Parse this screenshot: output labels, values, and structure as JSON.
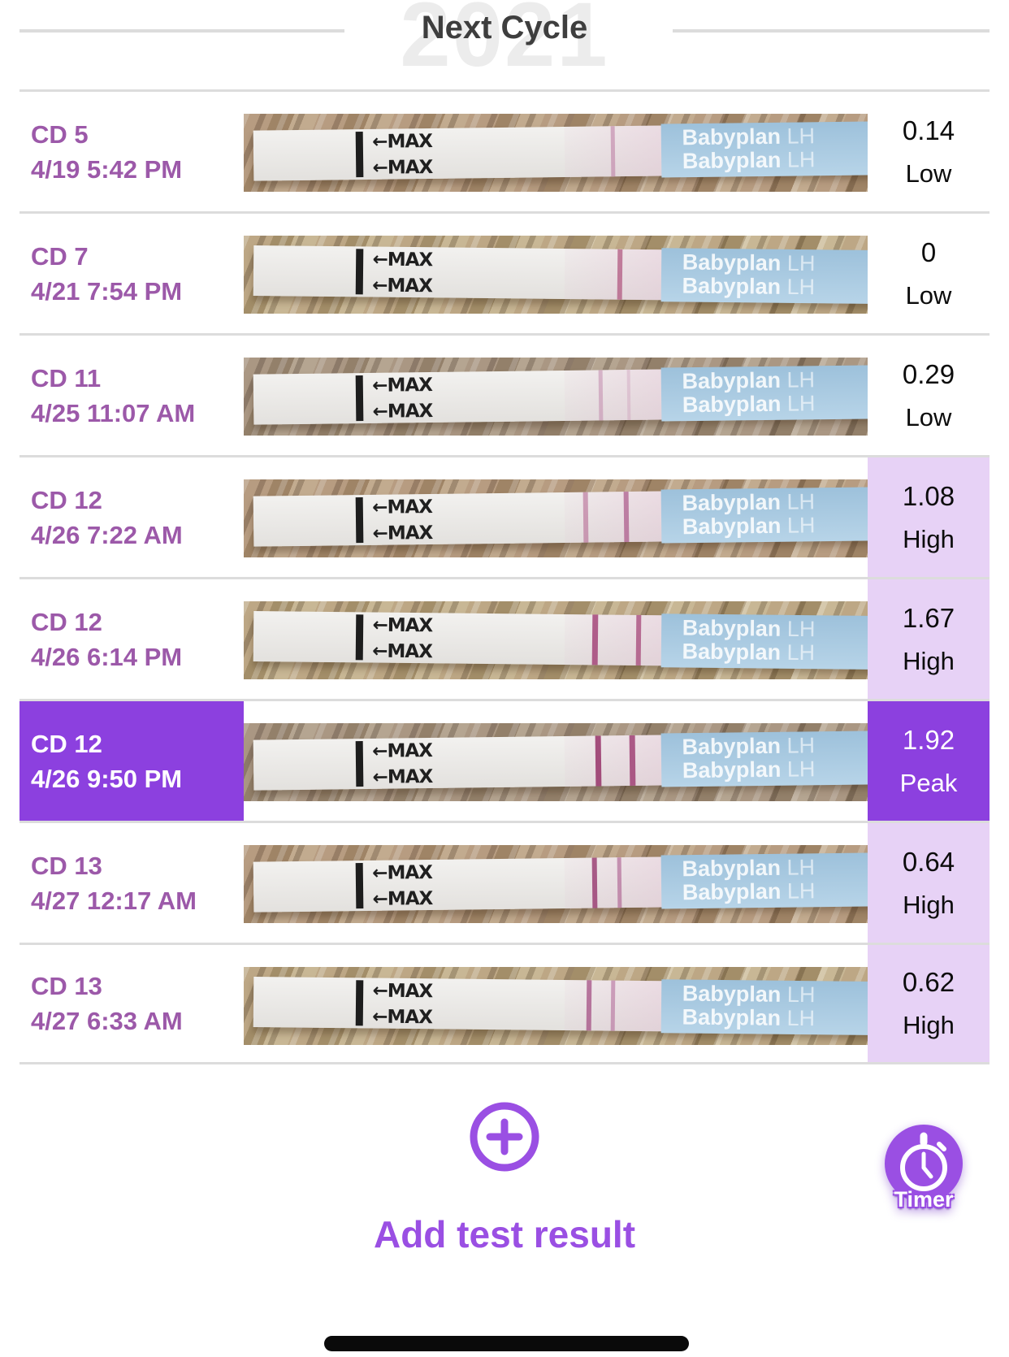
{
  "header": {
    "watermark": "2021",
    "title": "Next Cycle"
  },
  "colors": {
    "accent": "#9a4fe3",
    "peak_bg": "#8c40df",
    "high_bg": "#e7d2f6",
    "label_purple": "#9c59a9",
    "divider": "#dcdcdc"
  },
  "strip_print": {
    "max_label": "←MAX",
    "brand": "Babyplan",
    "brand_suffix": "LH"
  },
  "rows": [
    {
      "cd": "CD 5",
      "datetime": "4/19 5:42 PM",
      "value": "0.14",
      "status": "Low",
      "strip": {
        "lines": [
          {
            "pos": 0.575,
            "width": 5,
            "color": "rgba(186,120,160,0.55)"
          }
        ]
      }
    },
    {
      "cd": "CD 7",
      "datetime": "4/21 7:54 PM",
      "value": "0",
      "status": "Low",
      "strip": {
        "lines": [
          {
            "pos": 0.585,
            "width": 6,
            "color": "rgba(178,90,130,0.75)"
          }
        ]
      }
    },
    {
      "cd": "CD 11",
      "datetime": "4/25 11:07 AM",
      "value": "0.29",
      "status": "Low",
      "strip": {
        "lines": [
          {
            "pos": 0.555,
            "width": 5,
            "color": "rgba(190,130,168,0.50)"
          },
          {
            "pos": 0.6,
            "width": 4,
            "color": "rgba(200,150,180,0.35)"
          }
        ]
      }
    },
    {
      "cd": "CD 12",
      "datetime": "4/26 7:22 AM",
      "value": "1.08",
      "status": "High",
      "strip": {
        "lines": [
          {
            "pos": 0.53,
            "width": 6,
            "color": "rgba(176,95,140,0.55)"
          },
          {
            "pos": 0.595,
            "width": 6,
            "color": "rgba(170,85,135,0.70)"
          }
        ]
      }
    },
    {
      "cd": "CD 12",
      "datetime": "4/26 6:14 PM",
      "value": "1.67",
      "status": "High",
      "strip": {
        "lines": [
          {
            "pos": 0.545,
            "width": 7,
            "color": "rgba(160,60,115,0.80)"
          },
          {
            "pos": 0.615,
            "width": 6,
            "color": "rgba(165,70,120,0.75)"
          }
        ]
      }
    },
    {
      "cd": "CD 12",
      "datetime": "4/26 9:50 PM",
      "value": "1.92",
      "status": "Peak",
      "strip": {
        "lines": [
          {
            "pos": 0.55,
            "width": 7,
            "color": "rgba(150,50,105,0.85)"
          },
          {
            "pos": 0.605,
            "width": 7,
            "color": "rgba(155,55,110,0.80)"
          }
        ]
      }
    },
    {
      "cd": "CD 13",
      "datetime": "4/27 12:17 AM",
      "value": "0.64",
      "status": "High",
      "strip": {
        "lines": [
          {
            "pos": 0.545,
            "width": 6,
            "color": "rgba(150,55,110,0.80)"
          },
          {
            "pos": 0.585,
            "width": 5,
            "color": "rgba(170,90,140,0.60)"
          }
        ]
      }
    },
    {
      "cd": "CD 13",
      "datetime": "4/27 6:33 AM",
      "value": "0.62",
      "status": "High",
      "strip": {
        "lines": [
          {
            "pos": 0.535,
            "width": 6,
            "color": "rgba(160,70,125,0.70)"
          },
          {
            "pos": 0.575,
            "width": 5,
            "color": "rgba(175,100,150,0.55)"
          }
        ]
      }
    }
  ],
  "footer": {
    "add_label": "Add test result",
    "timer_label": "Timer"
  }
}
